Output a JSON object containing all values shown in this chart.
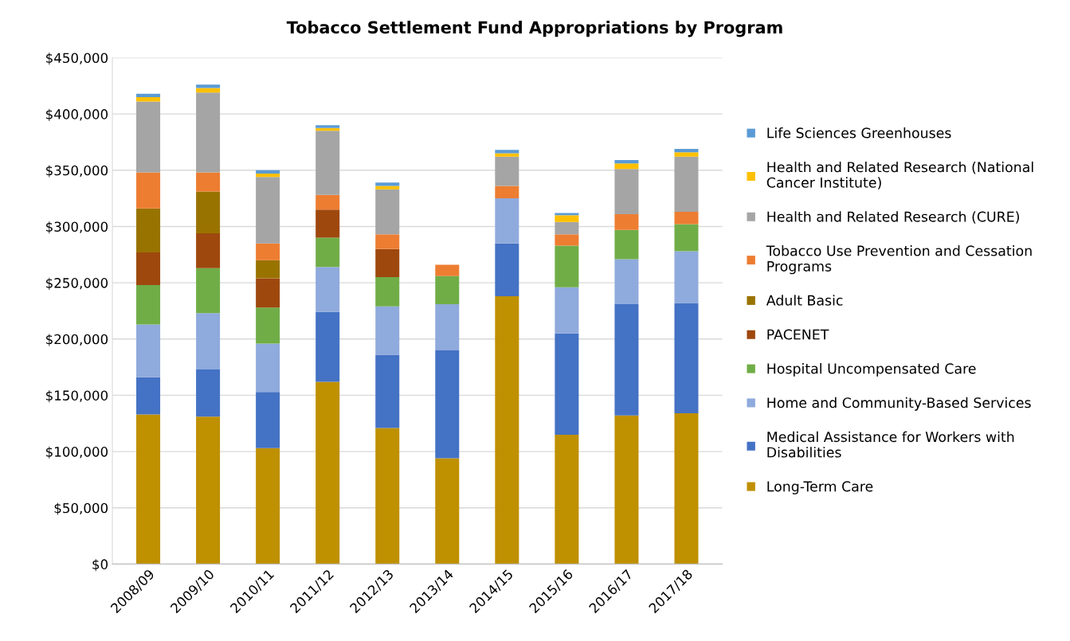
{
  "chart_data": {
    "type": "bar",
    "title": "Tobacco Settlement Fund Appropriations by Program",
    "stacked": true,
    "categories": [
      "2008/09",
      "2009/10",
      "2010/11",
      "2011/12",
      "2012/13",
      "2013/14",
      "2014/15",
      "2015/16",
      "2016/17",
      "2017/18"
    ],
    "series": [
      {
        "name": "Long-Term Care",
        "color": "#bf9000",
        "values": [
          133000,
          131000,
          103000,
          162000,
          121000,
          94000,
          238000,
          115000,
          132000,
          134000
        ]
      },
      {
        "name": "Medical Assistance for Workers with Disabilities",
        "color": "#4472c4",
        "values": [
          33000,
          42000,
          50000,
          62000,
          65000,
          96000,
          47000,
          90000,
          99000,
          98000
        ]
      },
      {
        "name": "Home and Community-Based Services",
        "color": "#8faadc",
        "values": [
          47000,
          50000,
          43000,
          40000,
          43000,
          41000,
          40000,
          41000,
          40000,
          46000
        ]
      },
      {
        "name": "Hospital Uncompensated Care",
        "color": "#70ad47",
        "values": [
          35000,
          40000,
          32000,
          26000,
          26000,
          25000,
          0,
          37000,
          26000,
          24000
        ]
      },
      {
        "name": "PACENET",
        "color": "#9e480e",
        "values": [
          29000,
          31000,
          26000,
          25000,
          25000,
          0,
          0,
          0,
          0,
          0
        ]
      },
      {
        "name": "Adult Basic",
        "color": "#997300",
        "values": [
          39000,
          37000,
          16000,
          0,
          0,
          0,
          0,
          0,
          0,
          0
        ]
      },
      {
        "name": "Tobacco Use Prevention and Cessation Programs",
        "color": "#ed7d31",
        "values": [
          32000,
          17000,
          15000,
          13000,
          13000,
          10000,
          11000,
          10000,
          14000,
          11000
        ]
      },
      {
        "name": "Health and Related Research (CURE)",
        "color": "#a5a5a5",
        "values": [
          63000,
          71000,
          59000,
          57000,
          40000,
          0,
          26000,
          11000,
          40000,
          49000
        ]
      },
      {
        "name": "Health and Related Research (National Cancer Institute)",
        "color": "#ffc000",
        "values": [
          4000,
          4000,
          3000,
          2500,
          3000,
          0,
          3000,
          6000,
          5000,
          4000
        ]
      },
      {
        "name": "Life Sciences Greenhouses",
        "color": "#5b9bd5",
        "values": [
          3000,
          3000,
          3000,
          2500,
          3000,
          0,
          3000,
          2000,
          3000,
          3000
        ]
      }
    ],
    "ylim": [
      0,
      450000
    ],
    "yticks": [
      {
        "value": 0,
        "label": "$0"
      },
      {
        "value": 50000,
        "label": "$50,000"
      },
      {
        "value": 100000,
        "label": "$100,000"
      },
      {
        "value": 150000,
        "label": "$150,000"
      },
      {
        "value": 200000,
        "label": "$200,000"
      },
      {
        "value": 250000,
        "label": "$250,000"
      },
      {
        "value": 300000,
        "label": "$300,000"
      },
      {
        "value": 350000,
        "label": "$350,000"
      },
      {
        "value": 400000,
        "label": "$400,000"
      },
      {
        "value": 450000,
        "label": "$450,000"
      }
    ],
    "grid": "y",
    "legend": "right"
  }
}
